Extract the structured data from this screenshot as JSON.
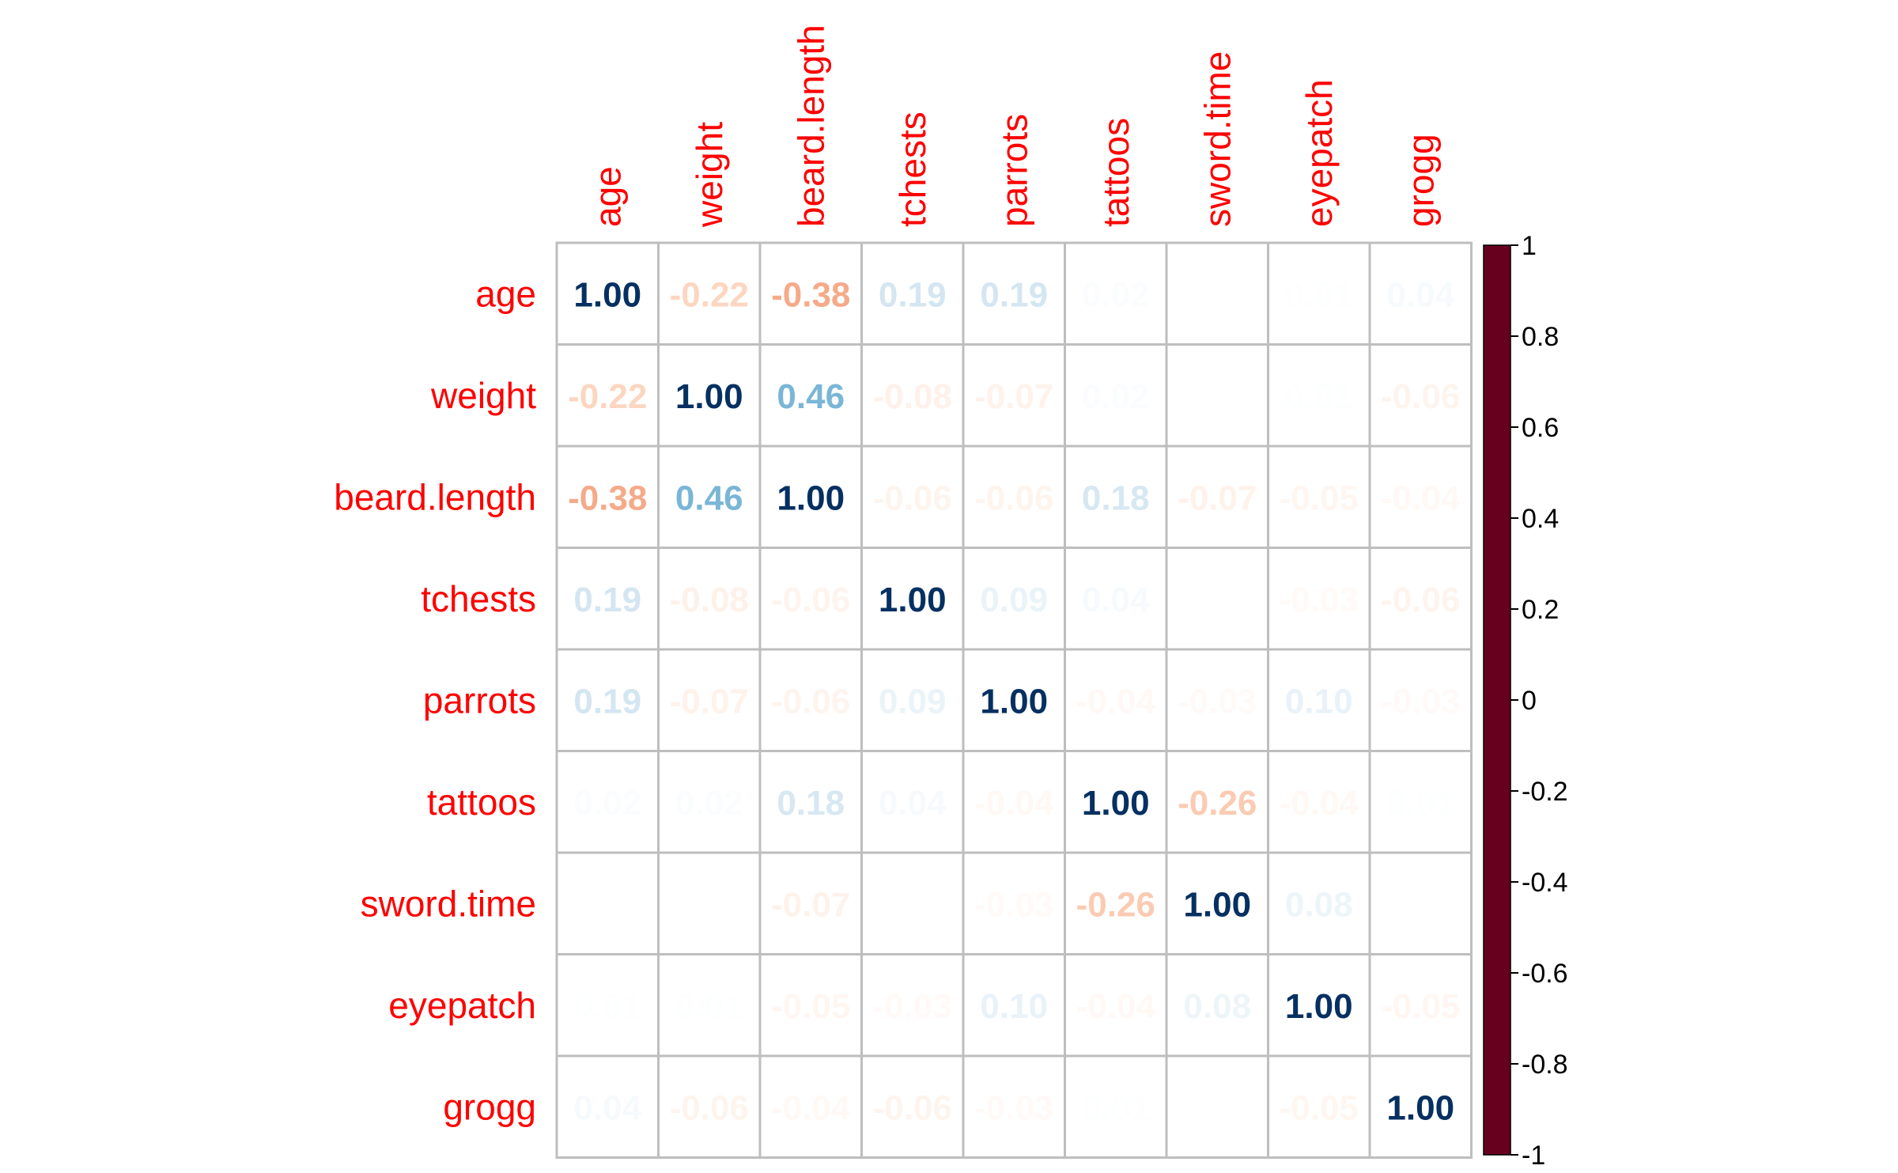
{
  "chart_data": {
    "type": "heatmap",
    "title": "",
    "variables": [
      "age",
      "weight",
      "beard.length",
      "tchests",
      "parrots",
      "tattoos",
      "sword.time",
      "eyepatch",
      "grogg"
    ],
    "matrix": [
      [
        1.0,
        -0.22,
        -0.38,
        0.19,
        0.19,
        0.02,
        0.0,
        0.01,
        0.04
      ],
      [
        -0.22,
        1.0,
        0.46,
        -0.08,
        -0.07,
        0.02,
        0.0,
        0.01,
        -0.06
      ],
      [
        -0.38,
        0.46,
        1.0,
        -0.06,
        -0.06,
        0.18,
        -0.07,
        -0.05,
        -0.04
      ],
      [
        0.19,
        -0.08,
        -0.06,
        1.0,
        0.09,
        0.04,
        0.0,
        -0.03,
        -0.06
      ],
      [
        0.19,
        -0.07,
        -0.06,
        0.09,
        1.0,
        -0.04,
        -0.03,
        0.1,
        -0.03
      ],
      [
        0.02,
        0.02,
        0.18,
        0.04,
        -0.04,
        1.0,
        -0.26,
        -0.04,
        0.01
      ],
      [
        0.0,
        0.0,
        -0.07,
        0.0,
        -0.03,
        -0.26,
        1.0,
        0.08,
        0.0
      ],
      [
        0.01,
        0.01,
        -0.05,
        -0.03,
        0.1,
        -0.04,
        0.08,
        1.0,
        -0.05
      ],
      [
        0.04,
        -0.06,
        -0.04,
        -0.06,
        -0.03,
        0.01,
        0.0,
        -0.05,
        1.0
      ]
    ],
    "colorbar": {
      "range": [
        -1,
        1
      ],
      "ticks": [
        "1",
        "0.8",
        "0.6",
        "0.4",
        "0.2",
        "0",
        "-0.2",
        "-0.4",
        "-0.6",
        "-0.8",
        "-1"
      ],
      "colors": [
        "#67001F",
        "#B2182B",
        "#D6604D",
        "#F4A582",
        "#FDDBC7",
        "#FFFFFF",
        "#D1E5F0",
        "#92C5DE",
        "#4393C3",
        "#2166AC",
        "#053061"
      ]
    },
    "label_color": "#FF0000",
    "grid_color": "#BEBEBE"
  }
}
